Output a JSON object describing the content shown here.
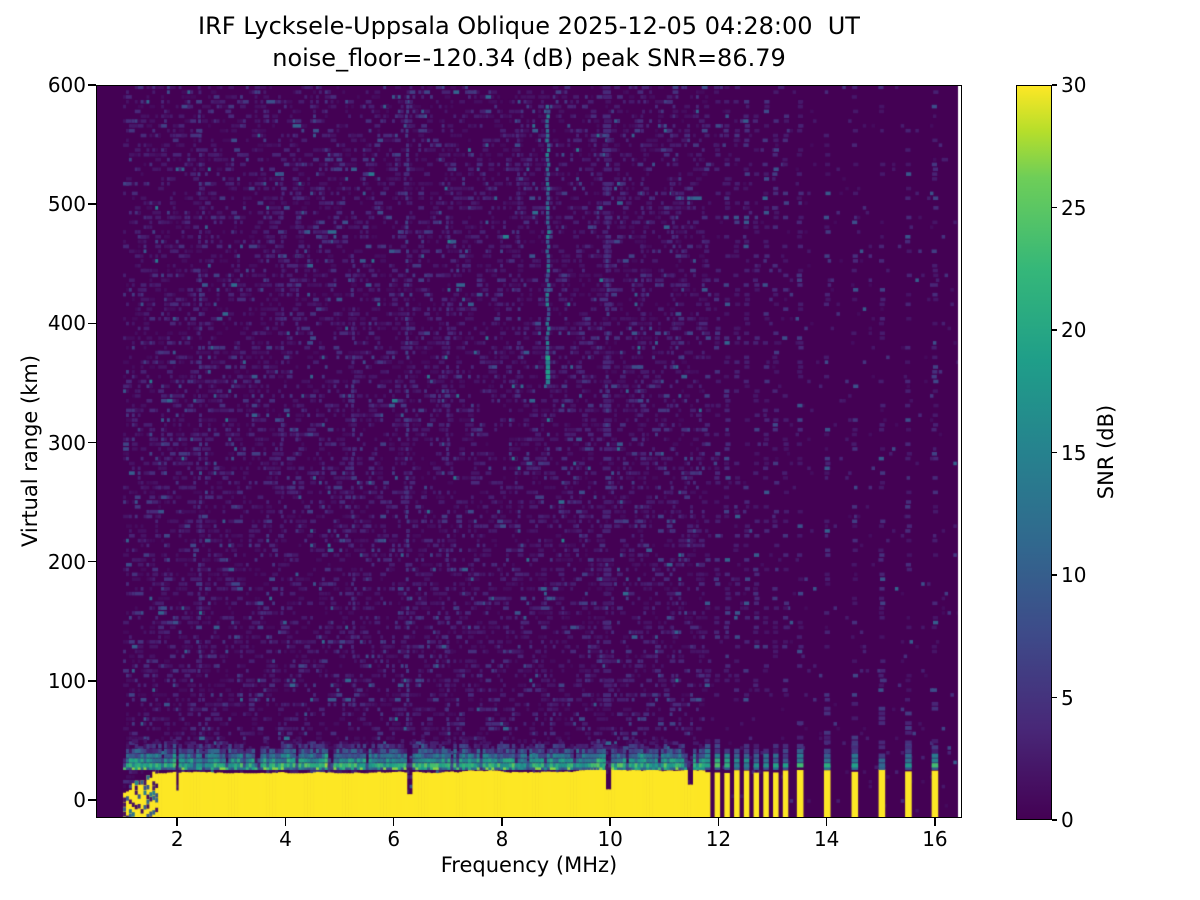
{
  "chart_data": {
    "type": "heatmap",
    "title": "IRF Lycksele-Uppsala Oblique 2025-12-05 04:28:00  UT",
    "subtitle": "noise_floor=-120.34 (dB) peak SNR=86.79",
    "noise_floor_db": -120.34,
    "peak_snr_db": 86.79,
    "station_pair": "IRF Lycksele-Uppsala",
    "mode": "Oblique",
    "timestamp_ut": "2025-12-05 04:28:00",
    "xlabel": "Frequency (MHz)",
    "ylabel": "Virtual range (km)",
    "xlim": [
      0.5,
      16.5
    ],
    "ylim": [
      -15,
      600
    ],
    "x_ticks": [
      2,
      4,
      6,
      8,
      10,
      12,
      14,
      16
    ],
    "y_ticks": [
      0,
      100,
      200,
      300,
      400,
      500,
      600
    ],
    "grid": false,
    "colormap_low": "#440154",
    "colormap_high": "#fde725",
    "colorbar": {
      "label": "SNR (dB)",
      "ticks": [
        0,
        5,
        10,
        15,
        20,
        25,
        30
      ],
      "range": [
        0,
        30
      ],
      "colormap": "viridis",
      "position": "right"
    },
    "sweep": {
      "f_min_mhz": 1.0,
      "f_max_mhz": 16.4,
      "f_step_mhz": 0.054,
      "range_gate_km": 4.05
    },
    "echo_band": {
      "description": "saturated direct-signal band (SNR ~30 dB) along the bottom of the ionogram",
      "f_start": 1.0,
      "f_end": 11.7,
      "top_km": 24,
      "line_km": 29,
      "cap_top_km": 52,
      "ramp_end_f": 1.6,
      "ramp_start_km": 8,
      "strong_notches": [
        {
          "f": 1.98,
          "w": 0.07,
          "depth_km": 8
        },
        {
          "f": 6.26,
          "w": 0.09,
          "depth_km": 5
        },
        {
          "f": 9.93,
          "w": 0.09,
          "depth_km": 9
        },
        {
          "f": 11.45,
          "w": 0.11,
          "depth_km": 13
        }
      ],
      "moderate_notches": [
        2.9,
        3.45,
        4.2,
        4.8,
        5.5,
        7.05,
        7.6,
        8.45,
        10.3,
        10.9
      ]
    },
    "discrete_bars": {
      "description": "isolated sounding frequencies above 11.7 MHz showing strong bottom echo columns",
      "dense": [
        11.8,
        11.98,
        12.16,
        12.34,
        12.52,
        12.7,
        12.88,
        13.06,
        13.24
      ],
      "sparse": [
        13.51,
        14.01,
        14.52,
        15.02,
        15.51,
        16.0
      ],
      "top_km": 25,
      "cap_top_km": 48
    },
    "rfi_streaks": [
      {
        "f": 2.42,
        "km": [
          60,
          600
        ],
        "p": 0.5,
        "v": 4.5,
        "w": 3
      },
      {
        "f": 3.94,
        "km": [
          150,
          520
        ],
        "p": 0.4,
        "v": 3.5,
        "w": 3
      },
      {
        "f": 4.22,
        "km": [
          300,
          560
        ],
        "p": 0.35,
        "v": 3.2,
        "w": 3
      },
      {
        "f": 5.25,
        "km": [
          80,
          460
        ],
        "p": 0.5,
        "v": 4.5,
        "w": 3
      },
      {
        "f": 6.25,
        "km": [
          60,
          590
        ],
        "p": 0.55,
        "v": 5.0,
        "w": 3
      },
      {
        "f": 6.85,
        "km": [
          100,
          360
        ],
        "p": 0.35,
        "v": 3.2,
        "w": 3
      },
      {
        "f": 7.0,
        "km": [
          60,
          500
        ],
        "p": 0.45,
        "v": 4.0,
        "w": 3
      },
      {
        "f": 8.3,
        "km": [
          340,
          580
        ],
        "p": 0.4,
        "v": 3.5,
        "w": 3
      },
      {
        "f": 8.85,
        "km": [
          350,
          585
        ],
        "p": 0.97,
        "v": 12.0,
        "w": 3.4,
        "tail": {
          "km": [
            350,
            374
          ],
          "v": 17.0,
          "w": 4.4
        }
      },
      {
        "f": 9.95,
        "km": [
          80,
          600
        ],
        "p": 0.5,
        "v": 3.2,
        "w": 8
      },
      {
        "f": 9.95,
        "km": [
          300,
          560
        ],
        "p": 0.5,
        "v": 5.0,
        "w": 3
      },
      {
        "f": 10.6,
        "km": [
          300,
          600
        ],
        "p": 0.35,
        "v": 3.2,
        "w": 3
      },
      {
        "f": 11.15,
        "km": [
          100,
          560
        ],
        "p": 0.35,
        "v": 3.4,
        "w": 3
      }
    ]
  }
}
